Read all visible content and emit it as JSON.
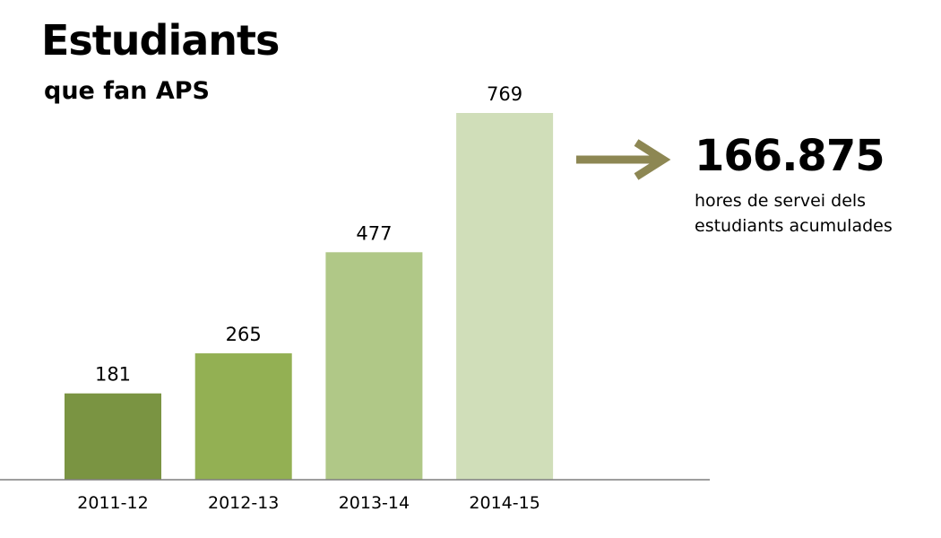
{
  "header": {
    "title": "Estudiants",
    "subtitle": "que fan APS"
  },
  "callout": {
    "total": "166.875",
    "caption": "hores de servei dels estudiants acumulades",
    "arrow_color": "#8d8753",
    "arrow_icon": "right-arrow-icon"
  },
  "chart_data": {
    "type": "bar",
    "title": "Estudiants",
    "subtitle": "que fan APS",
    "categories": [
      "2011-12",
      "2012-13",
      "2013-14",
      "2014-15"
    ],
    "values": [
      181,
      265,
      477,
      769
    ],
    "colors": [
      "#7a9442",
      "#93b053",
      "#b0c887",
      "#d0deb9"
    ],
    "data_labels": true,
    "xlabel": "",
    "ylabel": "",
    "ylim": [
      0,
      800
    ],
    "grid": false,
    "legend": "none",
    "baseline_color": "#7f7f7f"
  }
}
